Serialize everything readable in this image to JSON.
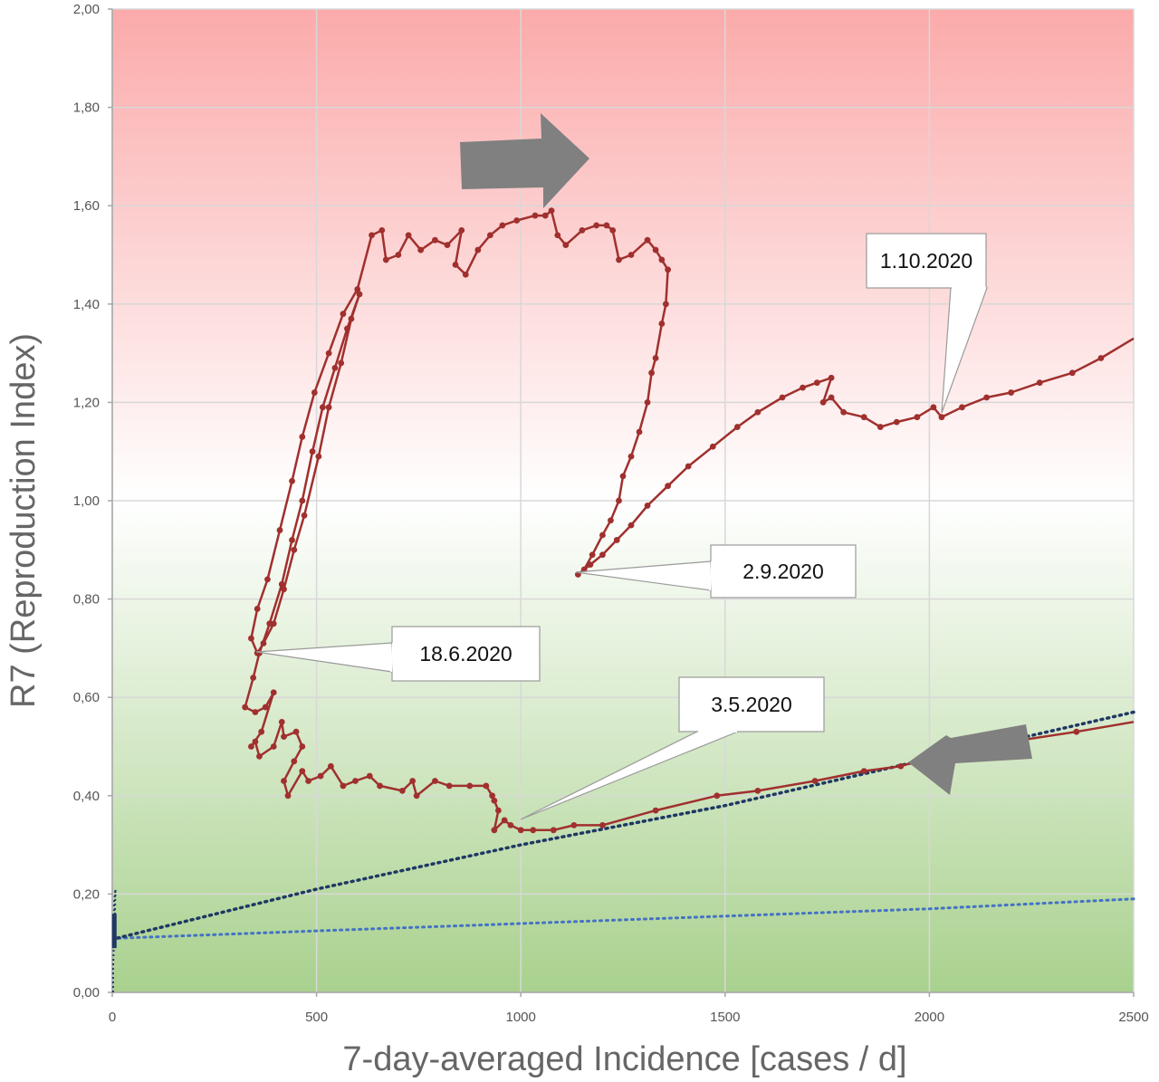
{
  "chart_data": {
    "type": "line",
    "title": "",
    "xlabel": "7-day-averaged Incidence [cases / d]",
    "ylabel": "R7 (Reproduction Index)",
    "xlim": [
      0,
      2500
    ],
    "ylim": [
      0,
      2.0
    ],
    "x_ticks": [
      0,
      500,
      1000,
      1500,
      2000,
      2500
    ],
    "y_ticks": [
      0,
      0.2,
      0.4,
      0.6,
      0.8,
      1.0,
      1.2,
      1.4,
      1.6,
      1.8,
      2.0
    ],
    "x_tick_labels": [
      "0",
      "500",
      "1000",
      "1500",
      "2000",
      "2500"
    ],
    "y_tick_labels": [
      "0,00",
      "0,20",
      "0,40",
      "0,60",
      "0,80",
      "1,00",
      "1,20",
      "1,40",
      "1,60",
      "1,80",
      "2,00"
    ],
    "grid": true,
    "background_gradient": [
      "#fbaaaa",
      "#ffffff",
      "#a9d18e"
    ],
    "colors": {
      "trajectory": "#a0302e",
      "dotted_dark": "#1f3864",
      "dotted_light": "#4472c4",
      "arrow": "#808080"
    },
    "series": [
      {
        "values_xy": [
          [
            2500,
            0.55
          ],
          [
            2360,
            0.53
          ],
          [
            2200,
            0.51
          ],
          [
            2050,
            0.49
          ],
          [
            1930,
            0.46
          ],
          [
            1840,
            0.45
          ],
          [
            1720,
            0.43
          ],
          [
            1580,
            0.41
          ],
          [
            1480,
            0.4
          ],
          [
            1330,
            0.37
          ],
          [
            1200,
            0.34
          ],
          [
            1130,
            0.34
          ],
          [
            1080,
            0.33
          ],
          [
            1030,
            0.33
          ],
          [
            1000,
            0.33
          ],
          [
            975,
            0.34
          ],
          [
            960,
            0.35
          ],
          [
            935,
            0.33
          ],
          [
            945,
            0.37
          ],
          [
            935,
            0.39
          ],
          [
            930,
            0.4
          ],
          [
            915,
            0.42
          ],
          [
            875,
            0.42
          ],
          [
            825,
            0.42
          ],
          [
            790,
            0.43
          ],
          [
            745,
            0.4
          ],
          [
            735,
            0.43
          ],
          [
            710,
            0.41
          ],
          [
            655,
            0.42
          ],
          [
            630,
            0.44
          ],
          [
            595,
            0.43
          ],
          [
            565,
            0.42
          ],
          [
            535,
            0.46
          ],
          [
            510,
            0.44
          ],
          [
            480,
            0.43
          ],
          [
            465,
            0.45
          ],
          [
            430,
            0.4
          ],
          [
            420,
            0.43
          ],
          [
            445,
            0.47
          ],
          [
            465,
            0.5
          ],
          [
            450,
            0.53
          ],
          [
            420,
            0.52
          ],
          [
            415,
            0.55
          ],
          [
            395,
            0.5
          ],
          [
            360,
            0.48
          ],
          [
            350,
            0.51
          ],
          [
            340,
            0.5
          ],
          [
            365,
            0.53
          ],
          [
            395,
            0.61
          ],
          [
            375,
            0.58
          ],
          [
            350,
            0.57
          ],
          [
            325,
            0.58
          ],
          [
            345,
            0.64
          ],
          [
            360,
            0.69
          ],
          [
            385,
            0.75
          ],
          [
            415,
            0.83
          ],
          [
            440,
            0.92
          ],
          [
            465,
            1.0
          ],
          [
            490,
            1.1
          ],
          [
            515,
            1.19
          ],
          [
            545,
            1.27
          ],
          [
            575,
            1.35
          ],
          [
            605,
            1.42
          ],
          [
            585,
            1.37
          ],
          [
            560,
            1.28
          ],
          [
            530,
            1.19
          ],
          [
            505,
            1.09
          ],
          [
            470,
            0.97
          ],
          [
            445,
            0.9
          ],
          [
            420,
            0.82
          ],
          [
            395,
            0.75
          ],
          [
            370,
            0.71
          ],
          [
            355,
            0.69
          ],
          [
            340,
            0.72
          ],
          [
            355,
            0.78
          ],
          [
            380,
            0.84
          ],
          [
            410,
            0.94
          ],
          [
            440,
            1.04
          ],
          [
            465,
            1.13
          ],
          [
            495,
            1.22
          ],
          [
            530,
            1.3
          ],
          [
            565,
            1.38
          ],
          [
            600,
            1.43
          ],
          [
            635,
            1.54
          ],
          [
            660,
            1.55
          ],
          [
            670,
            1.49
          ],
          [
            700,
            1.5
          ],
          [
            725,
            1.54
          ],
          [
            755,
            1.51
          ],
          [
            790,
            1.53
          ],
          [
            820,
            1.52
          ],
          [
            855,
            1.55
          ],
          [
            840,
            1.48
          ],
          [
            865,
            1.46
          ],
          [
            895,
            1.51
          ],
          [
            925,
            1.54
          ],
          [
            955,
            1.56
          ],
          [
            990,
            1.57
          ],
          [
            1035,
            1.58
          ],
          [
            1060,
            1.58
          ],
          [
            1075,
            1.59
          ],
          [
            1090,
            1.54
          ],
          [
            1110,
            1.52
          ],
          [
            1150,
            1.55
          ],
          [
            1185,
            1.56
          ],
          [
            1210,
            1.56
          ],
          [
            1225,
            1.55
          ],
          [
            1240,
            1.49
          ],
          [
            1270,
            1.5
          ],
          [
            1310,
            1.53
          ],
          [
            1330,
            1.51
          ],
          [
            1345,
            1.49
          ],
          [
            1360,
            1.47
          ],
          [
            1355,
            1.4
          ],
          [
            1345,
            1.36
          ],
          [
            1330,
            1.29
          ],
          [
            1320,
            1.26
          ],
          [
            1310,
            1.2
          ],
          [
            1290,
            1.14
          ],
          [
            1270,
            1.09
          ],
          [
            1250,
            1.05
          ],
          [
            1240,
            1.0
          ],
          [
            1220,
            0.96
          ],
          [
            1200,
            0.93
          ],
          [
            1175,
            0.89
          ],
          [
            1155,
            0.86
          ],
          [
            1140,
            0.85
          ],
          [
            1170,
            0.87
          ],
          [
            1200,
            0.89
          ],
          [
            1235,
            0.92
          ],
          [
            1270,
            0.95
          ],
          [
            1310,
            0.99
          ],
          [
            1360,
            1.03
          ],
          [
            1410,
            1.07
          ],
          [
            1470,
            1.11
          ],
          [
            1530,
            1.15
          ],
          [
            1580,
            1.18
          ],
          [
            1640,
            1.21
          ],
          [
            1690,
            1.23
          ],
          [
            1725,
            1.24
          ],
          [
            1760,
            1.25
          ],
          [
            1740,
            1.2
          ],
          [
            1760,
            1.21
          ],
          [
            1790,
            1.18
          ],
          [
            1840,
            1.17
          ],
          [
            1880,
            1.15
          ],
          [
            1920,
            1.16
          ],
          [
            1970,
            1.17
          ],
          [
            2010,
            1.19
          ],
          [
            2030,
            1.17
          ],
          [
            2080,
            1.19
          ],
          [
            2140,
            1.21
          ],
          [
            2200,
            1.22
          ],
          [
            2270,
            1.24
          ],
          [
            2350,
            1.26
          ],
          [
            2420,
            1.29
          ],
          [
            2500,
            1.33
          ]
        ]
      },
      {
        "values_xy": [
          [
            2500,
            0.57
          ],
          [
            1500,
            0.38
          ],
          [
            1000,
            0.3
          ],
          [
            500,
            0.21
          ],
          [
            10,
            0.11
          ]
        ]
      },
      {
        "values_xy": [
          [
            2500,
            0.19
          ],
          [
            2000,
            0.17
          ],
          [
            1500,
            0.155
          ],
          [
            1000,
            0.14
          ],
          [
            500,
            0.125
          ],
          [
            10,
            0.11
          ]
        ]
      }
    ],
    "annotations": [
      {
        "text": "1.10.2020",
        "point": [
          2020,
          1.17
        ]
      },
      {
        "text": "2.9.2020",
        "point": [
          1130,
          0.86
        ]
      },
      {
        "text": "18.6.2020",
        "point": [
          355,
          0.69
        ]
      },
      {
        "text": "3.5.2020",
        "point": [
          980,
          0.35
        ]
      }
    ]
  }
}
